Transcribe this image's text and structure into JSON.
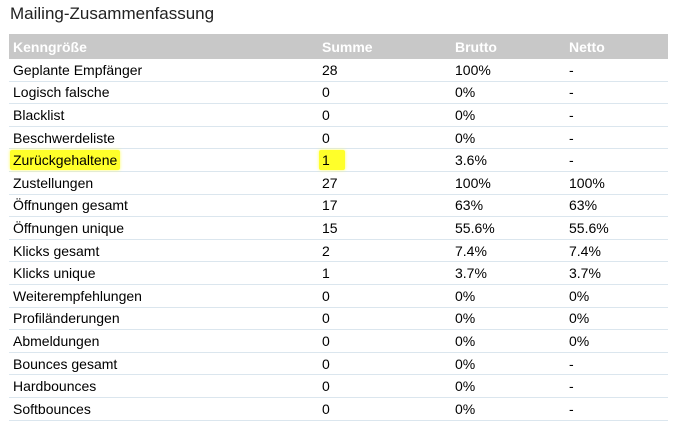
{
  "title": "Mailing-Zusammenfassung",
  "columns": {
    "kpi": "Kenngröße",
    "sum": "Summe",
    "brutto": "Brutto",
    "netto": "Netto"
  },
  "rows": [
    {
      "kpi": "Geplante Empfänger",
      "sum": "28",
      "brutto": "100%",
      "netto": "-"
    },
    {
      "kpi": "Logisch falsche",
      "sum": "0",
      "brutto": "0%",
      "netto": "-"
    },
    {
      "kpi": "Blacklist",
      "sum": "0",
      "brutto": "0%",
      "netto": "-"
    },
    {
      "kpi": "Beschwerdeliste",
      "sum": "0",
      "brutto": "0%",
      "netto": "-"
    },
    {
      "kpi": "Zurückgehaltene",
      "sum": "1",
      "brutto": "3.6%",
      "netto": "-",
      "highlighted": true
    },
    {
      "kpi": "Zustellungen",
      "sum": "27",
      "brutto": "100%",
      "netto": "100%"
    },
    {
      "kpi": "Öffnungen gesamt",
      "sum": "17",
      "brutto": "63%",
      "netto": "63%"
    },
    {
      "kpi": "Öffnungen unique",
      "sum": "15",
      "brutto": "55.6%",
      "netto": "55.6%"
    },
    {
      "kpi": "Klicks gesamt",
      "sum": "2",
      "brutto": "7.4%",
      "netto": "7.4%"
    },
    {
      "kpi": "Klicks unique",
      "sum": "1",
      "brutto": "3.7%",
      "netto": "3.7%"
    },
    {
      "kpi": "Weiterempfehlungen",
      "sum": "0",
      "brutto": "0%",
      "netto": "0%"
    },
    {
      "kpi": "Profiländerungen",
      "sum": "0",
      "brutto": "0%",
      "netto": "0%"
    },
    {
      "kpi": "Abmeldungen",
      "sum": "0",
      "brutto": "0%",
      "netto": "0%"
    },
    {
      "kpi": "Bounces gesamt",
      "sum": "0",
      "brutto": "0%",
      "netto": "-"
    },
    {
      "kpi": "Hardbounces",
      "sum": "0",
      "brutto": "0%",
      "netto": "-"
    },
    {
      "kpi": "Softbounces",
      "sum": "0",
      "brutto": "0%",
      "netto": "-"
    }
  ],
  "colors": {
    "header_bg": "#c8c8c8",
    "header_text": "#ffffff",
    "row_divider": "#dbe6ee",
    "highlight": "#ffff2a"
  }
}
